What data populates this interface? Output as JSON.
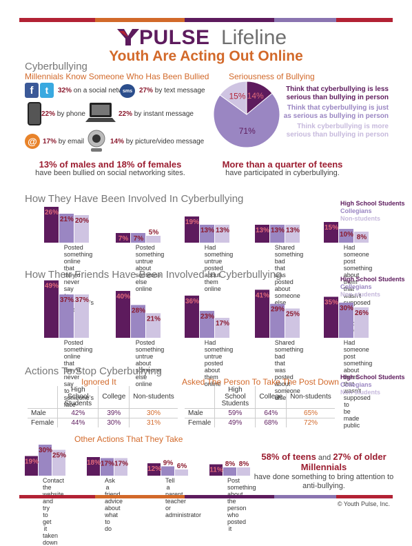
{
  "header": {
    "brand_ypulse": "PULSE",
    "brand_lifeline": "Lifeline",
    "subtitle": "Youth Are Acting Out Online",
    "bar_colors": [
      "#b22234",
      "#d2692a",
      "#5d1b5d",
      "#8a74b0",
      "#b22234"
    ]
  },
  "cyber": {
    "title": "Cyberbullying",
    "know_title": "Millennials Know Someone Who Has Been Bullied",
    "items": [
      {
        "icon": "social-network-icon",
        "pct": "32%",
        "text": "on a social network"
      },
      {
        "icon": "text-message-icon",
        "pct": "27%",
        "text": "by text message"
      },
      {
        "icon": "phone-icon",
        "pct": "22%",
        "text": "by phone"
      },
      {
        "icon": "laptop-icon",
        "pct": "22%",
        "text": "by instant message"
      },
      {
        "icon": "email-icon",
        "pct": "17%",
        "text": "by email"
      },
      {
        "icon": "webcam-icon",
        "pct": "14%",
        "text": "by picture/video message"
      }
    ],
    "callout_left_hl": "13% of males and 18% of females",
    "callout_left_rest": "have been bullied on social networking sites.",
    "callout_right_hl": "More than a quarter of teens",
    "callout_right_rest": "have participated in cyberbullying."
  },
  "seriousness": {
    "title": "Seriousness of Bullying",
    "legend": [
      "Think that cyberbullying is less serious than bullying in person",
      "Think that cyberbullying is just as serious as bullying in person",
      "Think cyberbullying is more serious than bullying in person"
    ]
  },
  "legend3": [
    "High School Students",
    "Collegians",
    "Non-students"
  ],
  "involved": {
    "title": "How They Have Been Involved In Cyberbullying",
    "captions": [
      "Posted something online that they'd never say to someone's face",
      "Posted something untrue about someone else online",
      "Had something untrue posted about them online",
      "Shared something bad that was posted about someone else",
      "Had someone post something about them that wasn't supposed to be made public"
    ]
  },
  "friends": {
    "title": "How Their Friends Have Been Involved In Cyberbullying",
    "captions": [
      "Posted something online that they'd never say to someone's face",
      "Posted something untrue about someone else online",
      "Had something untrue posted about them online",
      "Shared something bad that was posted about someone else",
      "Had someone post something about them that wasn't supposed to be made public"
    ]
  },
  "actions": {
    "title": "Actions To Stop Cyberbullying",
    "ignored_title": "Ignored It",
    "asked_title": "Asked The Person To Take The Post Down",
    "col_hs": "High School Students",
    "col_college": "College",
    "col_non": "Non-students",
    "rows_label": [
      "Male",
      "Female"
    ],
    "ignored": [
      [
        "42%",
        "39%",
        "30%"
      ],
      [
        "44%",
        "30%",
        "31%"
      ]
    ],
    "asked": [
      [
        "59%",
        "64%",
        "65%"
      ],
      [
        "49%",
        "68%",
        "72%"
      ]
    ],
    "other_title": "Other Actions That They Take",
    "other_captions": [
      "Contact the website and try to get it taken down",
      "Ask a friend advice about what to do",
      "Tell a parent, teacher or administrator",
      "Post something about the person who posted it"
    ],
    "callout_hl1": "58% of teens",
    "callout_mid": "and",
    "callout_hl2": "27% of older Millennials",
    "callout_rest": "have done something to bring attention to anti-bullying."
  },
  "footer": "© Youth Pulse, Inc.",
  "chart_data": [
    {
      "type": "pie",
      "title": "Seriousness of Bullying",
      "labels": [
        "Think that cyberbullying is less serious than bullying in person",
        "Think that cyberbullying is just as serious as bullying in person",
        "Think cyberbullying is more serious than bullying in person"
      ],
      "values": [
        14,
        71,
        15
      ],
      "colors": [
        "#5d1b5d",
        "#9a86c2",
        "#cfc4e2"
      ]
    },
    {
      "type": "bar",
      "title": "How They Have Been Involved In Cyberbullying",
      "categories": [
        "Posted something online that they'd never say to someone's face",
        "Posted something untrue about someone else online",
        "Had something untrue posted about them online",
        "Shared something bad that was posted about someone else",
        "Had someone post something about them that wasn't supposed to be made public"
      ],
      "series": [
        {
          "name": "High School Students",
          "values": [
            26,
            7,
            19,
            13,
            15
          ]
        },
        {
          "name": "Collegians",
          "values": [
            21,
            7,
            13,
            13,
            10
          ]
        },
        {
          "name": "Non-students",
          "values": [
            20,
            5,
            13,
            13,
            8
          ]
        }
      ],
      "ylim": [
        0,
        50
      ]
    },
    {
      "type": "bar",
      "title": "How Their Friends Have Been Involved In Cyberbullying",
      "categories": [
        "Posted something online that they'd never say to someone's face",
        "Posted something untrue about someone else online",
        "Had something untrue posted about them online",
        "Shared something bad that was posted about someone else",
        "Had someone post something about them that wasn't supposed to be made public"
      ],
      "series": [
        {
          "name": "High School Students",
          "values": [
            49,
            40,
            36,
            41,
            35
          ]
        },
        {
          "name": "Collegians",
          "values": [
            37,
            28,
            23,
            29,
            30
          ]
        },
        {
          "name": "Non-students",
          "values": [
            37,
            21,
            17,
            25,
            26
          ]
        }
      ],
      "ylim": [
        0,
        50
      ]
    },
    {
      "type": "bar",
      "title": "Other Actions That They Take",
      "categories": [
        "Contact the website and try to get it taken down",
        "Ask a friend advice about what to do",
        "Tell a parent, teacher or administrator",
        "Post something about the person who posted it"
      ],
      "series": [
        {
          "name": "High School Students",
          "values": [
            19,
            18,
            12,
            11
          ]
        },
        {
          "name": "Collegians",
          "values": [
            30,
            17,
            9,
            8
          ]
        },
        {
          "name": "Non-students",
          "values": [
            25,
            17,
            6,
            8
          ]
        }
      ],
      "ylim": [
        0,
        50
      ]
    }
  ]
}
